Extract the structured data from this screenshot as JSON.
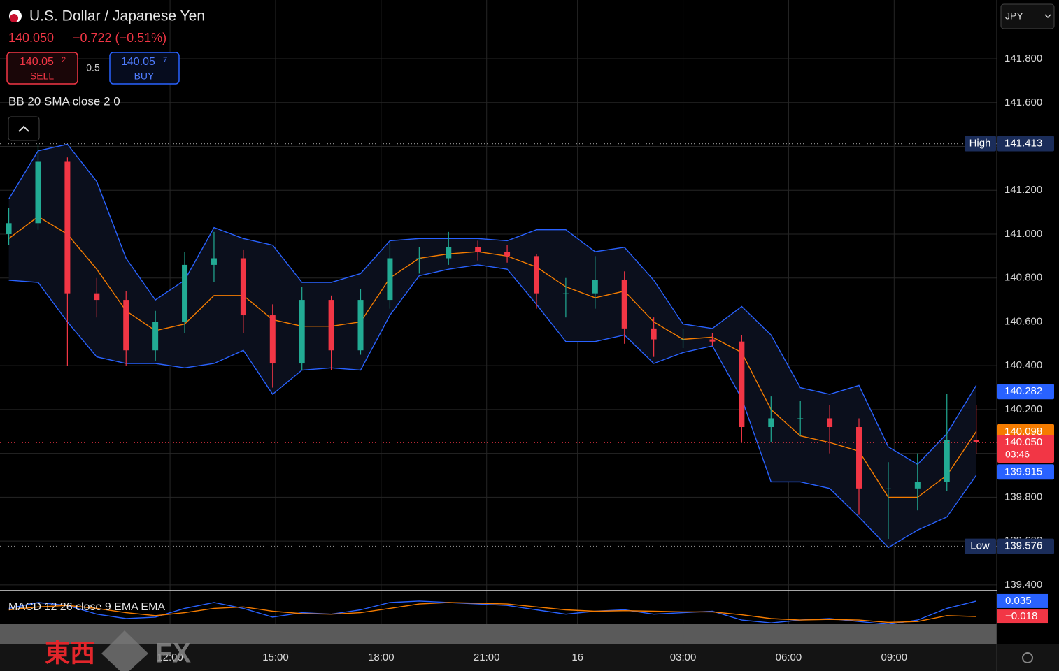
{
  "chart_data": {
    "type": "candlestick",
    "title": "U.S. Dollar / Japanese Yen",
    "currency": "JPY",
    "header": {
      "price": "140.050",
      "change": "−0.722 (−0.51%)",
      "sell": {
        "price": "140.05",
        "pip": "2",
        "label": "SELL"
      },
      "spread": "0.5",
      "buy": {
        "price": "140.05",
        "pip": "7",
        "label": "BUY"
      }
    },
    "indicator": "BB 20 SMA close 2 0",
    "x": [
      -55,
      -45,
      -35,
      -25,
      -15,
      -5,
      5,
      15,
      25,
      35,
      45,
      55,
      65,
      75,
      85,
      95,
      105,
      115,
      125,
      135,
      145,
      155,
      165,
      175,
      185,
      195,
      205,
      215,
      225,
      235,
      245,
      255,
      265,
      275
    ],
    "xlim": [
      -58,
      282
    ],
    "xticks": [
      {
        "value": 0,
        "label": "12:00"
      },
      {
        "value": 36,
        "label": "15:00"
      },
      {
        "value": 72,
        "label": "18:00"
      },
      {
        "value": 108,
        "label": "21:00"
      },
      {
        "value": 139,
        "label": "16"
      },
      {
        "value": 175,
        "label": "03:00"
      },
      {
        "value": 211,
        "label": "06:00"
      },
      {
        "value": 247,
        "label": "09:00"
      }
    ],
    "ylim": [
      139.374,
      142.068
    ],
    "yticks": [
      {
        "value": 139.4,
        "label": "139.400"
      },
      {
        "value": 139.6,
        "label": "139.600"
      },
      {
        "value": 139.8,
        "label": "139.800"
      },
      {
        "value": 140.0,
        "label": "140.000"
      },
      {
        "value": 140.2,
        "label": "140.200"
      },
      {
        "value": 140.4,
        "label": "140.400"
      },
      {
        "value": 140.6,
        "label": "140.600"
      },
      {
        "value": 140.8,
        "label": "140.800"
      },
      {
        "value": 141.0,
        "label": "141.000"
      },
      {
        "value": 141.2,
        "label": "141.200"
      },
      {
        "value": 141.4,
        "label": "141.400"
      },
      {
        "value": 141.6,
        "label": "141.600"
      },
      {
        "value": 141.8,
        "label": "141.800"
      }
    ],
    "grid": true,
    "up_color": "#22ab94",
    "down_color": "#f23645",
    "open": [
      141.0,
      141.05,
      141.33,
      140.73,
      140.7,
      140.47,
      140.6,
      140.86,
      140.89,
      140.63,
      140.41,
      140.7,
      140.47,
      140.7,
      140.89,
      140.89,
      140.94,
      140.92,
      140.9,
      140.73,
      140.73,
      140.79,
      140.57,
      140.52,
      140.52,
      140.51,
      140.12,
      140.16,
      140.16,
      140.12,
      139.84,
      139.84,
      139.87,
      140.06
    ],
    "high": [
      141.12,
      141.41,
      141.35,
      140.8,
      140.74,
      140.65,
      140.92,
      141.01,
      140.93,
      140.68,
      140.76,
      140.72,
      140.75,
      140.96,
      140.94,
      141.01,
      140.97,
      140.95,
      140.91,
      140.8,
      140.9,
      140.83,
      140.62,
      140.57,
      140.55,
      140.54,
      140.26,
      140.24,
      140.22,
      140.16,
      139.96,
      140.0,
      140.27,
      140.22
    ],
    "low": [
      140.95,
      141.02,
      140.4,
      140.62,
      140.4,
      140.42,
      140.55,
      140.78,
      140.55,
      140.3,
      140.38,
      140.38,
      140.45,
      140.66,
      140.82,
      140.86,
      140.88,
      140.87,
      140.66,
      140.62,
      140.66,
      140.5,
      140.44,
      140.48,
      140.49,
      140.05,
      140.05,
      140.08,
      140.0,
      139.72,
      139.61,
      139.74,
      139.83,
      140.0
    ],
    "close": [
      141.05,
      141.33,
      140.73,
      140.7,
      140.47,
      140.6,
      140.86,
      140.89,
      140.63,
      140.41,
      140.7,
      140.47,
      140.7,
      140.89,
      140.89,
      140.94,
      140.92,
      140.9,
      140.73,
      140.73,
      140.79,
      140.57,
      140.52,
      140.52,
      140.51,
      140.12,
      140.16,
      140.16,
      140.12,
      139.84,
      139.84,
      139.87,
      140.06,
      140.05
    ],
    "bands": {
      "fill": "#0b0f1c",
      "upper": {
        "color": "#2962ff",
        "values": [
          141.16,
          141.38,
          141.41,
          141.24,
          140.89,
          140.7,
          140.79,
          141.03,
          140.98,
          140.95,
          140.78,
          140.78,
          140.82,
          140.97,
          140.98,
          140.98,
          140.98,
          140.97,
          141.02,
          141.02,
          140.92,
          140.94,
          140.79,
          140.59,
          140.57,
          140.67,
          140.54,
          140.3,
          140.27,
          140.31,
          140.03,
          139.95,
          140.09,
          140.31
        ]
      },
      "middle": {
        "color": "#f57c00",
        "values": [
          140.98,
          141.08,
          141.0,
          140.84,
          140.65,
          140.56,
          140.59,
          140.72,
          140.72,
          140.61,
          140.58,
          140.58,
          140.6,
          140.8,
          140.89,
          140.91,
          140.92,
          140.9,
          140.85,
          140.76,
          140.71,
          140.74,
          140.6,
          140.52,
          140.53,
          140.46,
          140.2,
          140.08,
          140.05,
          140.01,
          139.8,
          139.8,
          139.9,
          140.1
        ]
      },
      "lower": {
        "color": "#2962ff",
        "values": [
          140.79,
          140.78,
          140.6,
          140.44,
          140.41,
          140.41,
          140.39,
          140.41,
          140.47,
          140.27,
          140.38,
          140.39,
          140.38,
          140.63,
          140.81,
          140.84,
          140.86,
          140.84,
          140.68,
          140.51,
          140.51,
          140.54,
          140.41,
          140.46,
          140.49,
          140.25,
          139.87,
          139.87,
          139.84,
          139.71,
          139.57,
          139.65,
          139.71,
          139.9
        ]
      }
    },
    "price_labels": [
      {
        "tag": "High",
        "value": 141.413,
        "label": "141.413",
        "color": "#1b2d5a",
        "line": true
      },
      {
        "tag": "Low",
        "value": 139.576,
        "label": "139.576",
        "color": "#1b2d5a",
        "line": true
      },
      {
        "value": 140.282,
        "label": "140.282",
        "color": "#2962ff"
      },
      {
        "value": 140.098,
        "label": "140.098",
        "color": "#f57c00"
      },
      {
        "value": 140.05,
        "label": "140.050",
        "sub": "03:46",
        "color": "#f23645",
        "line": true
      },
      {
        "value": 139.915,
        "label": "139.915",
        "color": "#2962ff"
      }
    ],
    "macd": {
      "label": "MACD 12 26 close 9 EMA EMA",
      "ylim": [
        -0.049,
        0.066
      ],
      "series": [
        {
          "color": "#2962ff",
          "values": [
            0.01,
            0.03,
            0.02,
            -0.01,
            -0.025,
            -0.02,
            0.01,
            0.03,
            0.01,
            -0.02,
            -0.005,
            -0.01,
            0.005,
            0.03,
            0.035,
            0.03,
            0.025,
            0.02,
            0.005,
            -0.01,
            0.0,
            0.005,
            -0.01,
            -0.005,
            0.0,
            -0.03,
            -0.04,
            -0.03,
            -0.025,
            -0.035,
            -0.045,
            -0.03,
            0.01,
            0.035
          ]
        },
        {
          "color": "#f57c00",
          "values": [
            0.005,
            0.015,
            0.02,
            0.01,
            -0.005,
            -0.015,
            -0.005,
            0.01,
            0.015,
            0.0,
            -0.008,
            -0.01,
            -0.005,
            0.01,
            0.025,
            0.03,
            0.028,
            0.025,
            0.015,
            0.005,
            0.0,
            0.002,
            0.0,
            -0.002,
            -0.002,
            -0.012,
            -0.025,
            -0.03,
            -0.028,
            -0.03,
            -0.038,
            -0.035,
            -0.015,
            -0.018
          ]
        }
      ],
      "labels": [
        {
          "value": 0.035,
          "label": "0.035",
          "color": "#2962ff"
        },
        {
          "value": -0.018,
          "label": "−0.018",
          "color": "#f23645"
        }
      ]
    },
    "watermark": {
      "text": "東西",
      "brand": "FX"
    }
  }
}
